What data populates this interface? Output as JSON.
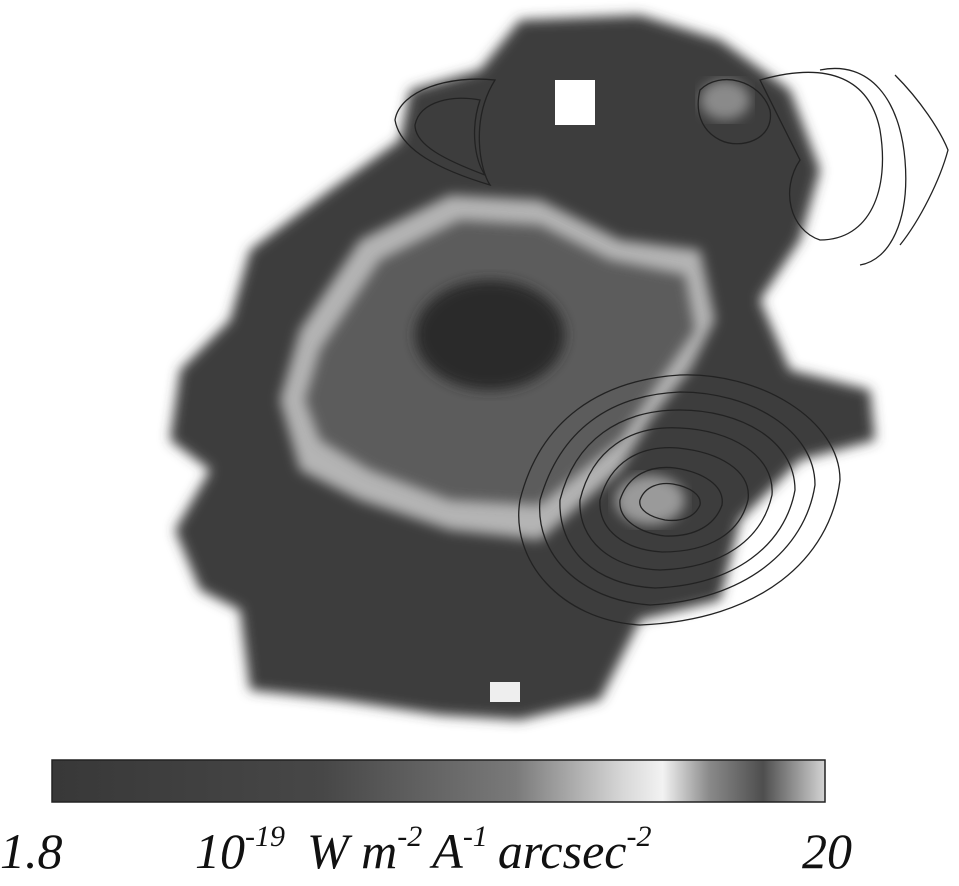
{
  "colorbar": {
    "min_label": "1.8",
    "max_label": "20",
    "unit": [
      {
        "base": "10",
        "sup": "-19"
      },
      {
        "base": "W m",
        "sup": "-2"
      },
      {
        "base": "A",
        "sup": "-1"
      },
      {
        "base": "arcsec",
        "sup": "-2"
      }
    ]
  }
}
